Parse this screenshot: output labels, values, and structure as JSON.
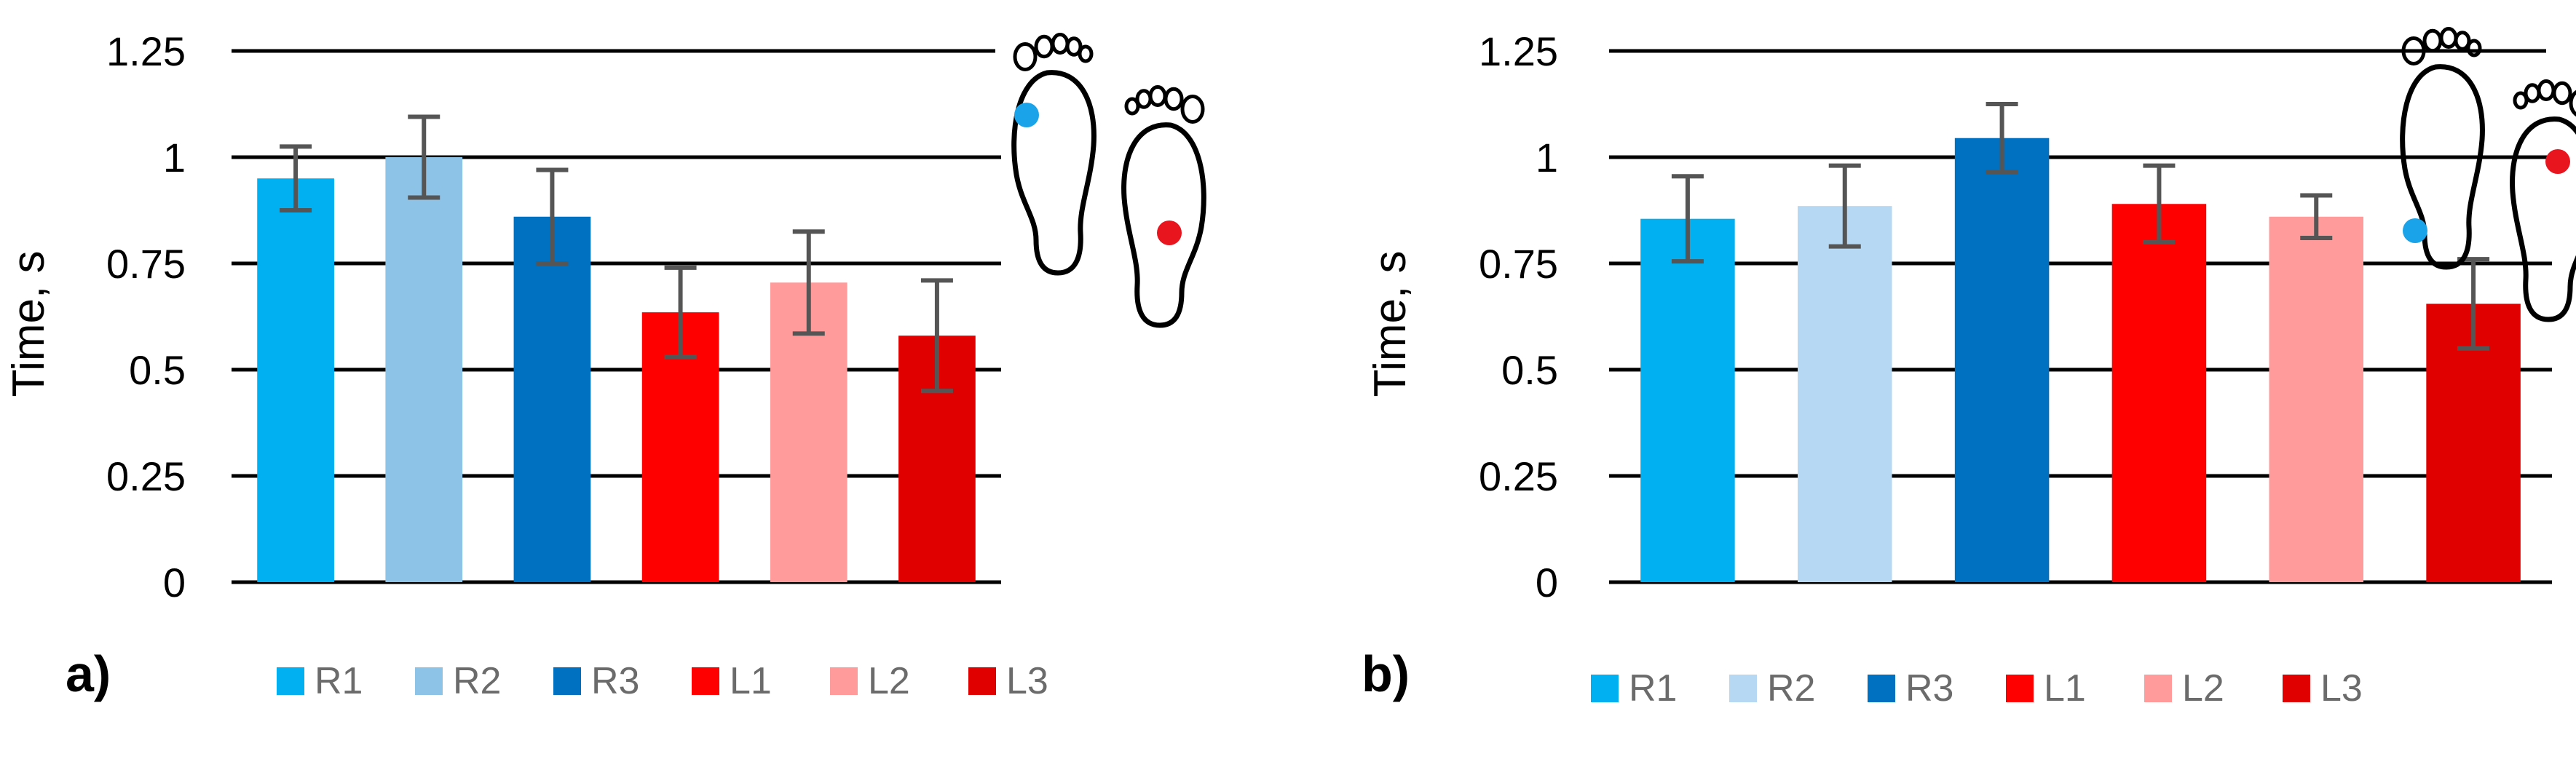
{
  "colors": {
    "R1": "#00b0f0",
    "R2": "#8ec3e8",
    "R2b": "#b6d8f2",
    "R3": "#0070c0",
    "L1": "#ff0000",
    "L2": "#ff9b9b",
    "L3": "#e00000",
    "grid": "#000000",
    "error_bar": "#555555",
    "legend_text": "#6b6b6b",
    "foot_dot_blue": "#1aa3e8",
    "foot_dot_red": "#e8141e"
  },
  "chart_data": [
    {
      "type": "bar",
      "panel_label": "a)",
      "categories": [
        "R1",
        "R2",
        "R3",
        "L1",
        "L2",
        "L3"
      ],
      "values": [
        0.95,
        1.0,
        0.86,
        0.635,
        0.705,
        0.58
      ],
      "errors": [
        0.075,
        0.095,
        0.11,
        0.105,
        0.12,
        0.13
      ],
      "ylabel": "Time, s",
      "ylim": [
        0,
        1.25
      ],
      "yticks": [
        "0",
        "0.25",
        "0.5",
        "0.75",
        "1",
        "1.25"
      ],
      "grid": true,
      "legend": {
        "placement": "bottom",
        "entries": [
          "R1",
          "R2",
          "R3",
          "L1",
          "L2",
          "L3"
        ]
      },
      "bar_colors": [
        "R1",
        "R2",
        "R3",
        "L1",
        "L2",
        "L3"
      ],
      "foot_icon": {
        "left_foot_dot": "forefoot",
        "right_foot_dot": "heel"
      }
    },
    {
      "type": "bar",
      "panel_label": "b)",
      "categories": [
        "R1",
        "R2",
        "R3",
        "L1",
        "L2",
        "L3"
      ],
      "values": [
        0.855,
        0.885,
        1.045,
        0.89,
        0.86,
        0.655
      ],
      "errors": [
        0.1,
        0.095,
        0.08,
        0.09,
        0.05,
        0.105
      ],
      "ylabel": "Time, s",
      "ylim": [
        0,
        1.25
      ],
      "yticks": [
        "0",
        "0.25",
        "0.5",
        "0.75",
        "1",
        "1.25"
      ],
      "grid": true,
      "legend": {
        "placement": "bottom",
        "entries": [
          "R1",
          "R2",
          "R3",
          "L1",
          "L2",
          "L3"
        ]
      },
      "bar_colors": [
        "R1",
        "R2b",
        "R3",
        "L1",
        "L2",
        "L3"
      ],
      "foot_icon": {
        "left_foot_dot": "heel",
        "right_foot_dot": "forefoot"
      }
    }
  ]
}
